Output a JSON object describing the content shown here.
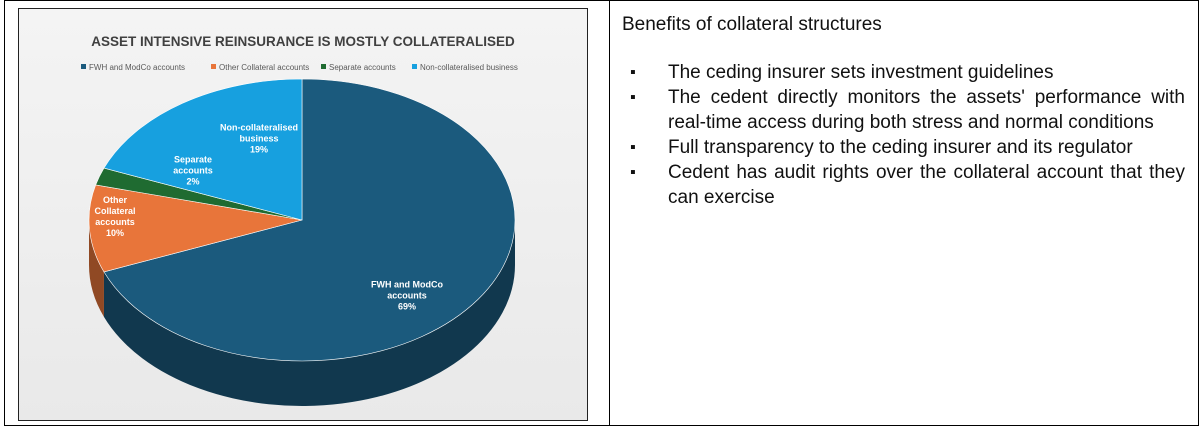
{
  "chart_data": {
    "type": "pie",
    "title": "ASSET INTENSIVE REINSURANCE IS MOSTLY COLLATERALISED",
    "categories": [
      "FWH and ModCo accounts",
      "Other Collateral accounts",
      "Separate accounts",
      "Non-collateralised business"
    ],
    "values": [
      69,
      10,
      2,
      19
    ],
    "value_labels": [
      "69%",
      "10%",
      "2%",
      "19%"
    ],
    "colors": [
      "#1b5a7d",
      "#e8753a",
      "#1f6b31",
      "#17a0df"
    ],
    "legend": "top"
  },
  "panel": {
    "heading": "Benefits of collateral structures",
    "bullets": [
      "The ceding insurer sets investment guidelines",
      "The cedent directly monitors the assets' performance with real-time access during both stress and normal conditions",
      "Full transparency to the ceding insurer and its regulator",
      "Cedent has audit rights over the collateral account that they can exercise"
    ]
  }
}
